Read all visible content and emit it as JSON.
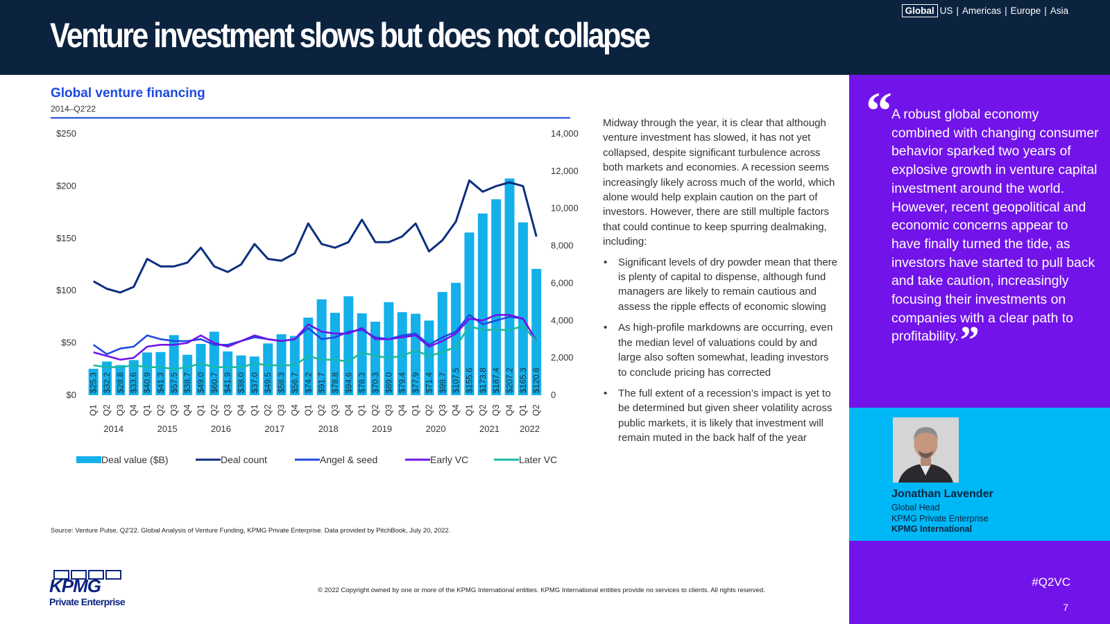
{
  "header": {
    "title": "Venture investment slows but does not collapse",
    "regions": [
      "Global",
      "US",
      "Americas",
      "Europe",
      "Asia"
    ]
  },
  "chart_title": "Global venture financing",
  "chart_subtitle": "2014–Q2'22",
  "body": {
    "intro": "Midway through the year, it is clear that although venture investment has slowed, it has not yet collapsed, despite significant turbulence across both markets and economies. A recession seems increasingly likely across much of the world, which alone would help explain caution on the part of investors. However, there are still multiple factors that could continue to keep spurring dealmaking, including:",
    "bullets": [
      "Significant levels of dry powder mean that there is plenty of capital to dispense, although fund managers are likely to remain cautious and assess the ripple effects of economic slowing",
      "As high-profile markdowns are occurring, even the median level of valuations could by and large also soften somewhat, leading investors to conclude pricing has corrected",
      "The full extent of a recession’s impact is yet to be determined but given sheer volatility across public markets, it is likely that investment will remain muted in the back half of the year"
    ]
  },
  "source": "Source: Venture Pulse, Q2'22. Global Analysis of Venture Funding, KPMG Private Enterprise. Data provided by PitchBook, July 20, 2022.",
  "copyright": "© 2022 Copyright owned by one or more of the KPMG International entities. KPMG International entities provide no services to clients. All rights reserved.",
  "logo": {
    "word": "KPMG",
    "sub": "Private Enterprise"
  },
  "quote": "A robust global economy combined with changing consumer behavior sparked two years of explosive growth in venture capital investment around the world. However, recent geopolitical and economic concerns appear to have finally turned the tide, as investors have started to pull back and take caution, increasingly focusing their investments on companies with a clear path to profitability.",
  "person": {
    "name": "Jonathan Lavender",
    "role1": "Global Head",
    "role2": "KPMG Private Enterprise",
    "org": "KPMG International"
  },
  "hashtag": "#Q2VC",
  "page_number": "7",
  "colors": {
    "navy": "#0c233f",
    "purple": "#7213ea",
    "cyan": "#00b8f5",
    "bar": "#14b0ea",
    "deal_count": "#0c2e7e",
    "angel_seed": "#1e49e2",
    "early_vc": "#7213ea",
    "later_vc": "#1ab8a6"
  },
  "chart_data": {
    "type": "bar",
    "categories": [
      "Q1",
      "Q2",
      "Q3",
      "Q4",
      "Q1",
      "Q2",
      "Q3",
      "Q4",
      "Q1",
      "Q2",
      "Q3",
      "Q4",
      "Q1",
      "Q2",
      "Q3",
      "Q4",
      "Q1",
      "Q2",
      "Q3",
      "Q4",
      "Q1",
      "Q2",
      "Q3",
      "Q4",
      "Q1",
      "Q2",
      "Q3",
      "Q4",
      "Q1",
      "Q2",
      "Q3",
      "Q4",
      "Q1",
      "Q2"
    ],
    "years": [
      "2014",
      "2015",
      "2016",
      "2017",
      "2018",
      "2019",
      "2020",
      "2021",
      "2022"
    ],
    "bar_labels": [
      "$25.3",
      "$32.2",
      "$28.8",
      "$33.6",
      "$40.9",
      "$41.3",
      "$57.5",
      "$38.7",
      "$49.0",
      "$60.7",
      "$41.9",
      "$38.0",
      "$37.0",
      "$49.5",
      "$58.3",
      "$56.7",
      "$74.2",
      "$91.7",
      "$78.8",
      "$94.6",
      "$78.3",
      "$70.3",
      "$89.0",
      "$79.4",
      "$77.9",
      "$71.4",
      "$98.7",
      "$107.5",
      "$155.6",
      "$173.8",
      "$187.4",
      "$207.2",
      "$165.3",
      "$120.8"
    ],
    "series": [
      {
        "name": "Deal value ($B)",
        "type": "bar",
        "axis": "left",
        "values": [
          25.3,
          32.2,
          28.8,
          33.6,
          40.9,
          41.3,
          57.5,
          38.7,
          49.0,
          60.7,
          41.9,
          38.0,
          37.0,
          49.5,
          58.3,
          56.7,
          74.2,
          91.7,
          78.8,
          94.6,
          78.3,
          70.3,
          89.0,
          79.4,
          77.9,
          71.4,
          98.7,
          107.5,
          155.6,
          173.8,
          187.4,
          207.2,
          165.3,
          120.8
        ]
      },
      {
        "name": "Deal count",
        "type": "line",
        "axis": "right",
        "values": [
          6100,
          5700,
          5500,
          5800,
          7300,
          6900,
          6900,
          7100,
          7900,
          6900,
          6600,
          7000,
          8100,
          7300,
          7200,
          7600,
          9200,
          8100,
          7900,
          8200,
          9400,
          8200,
          8200,
          8500,
          9200,
          7700,
          8300,
          9300,
          11500,
          10900,
          11200,
          11400,
          11200,
          8500
        ]
      },
      {
        "name": "Angel & seed",
        "type": "line",
        "axis": "right",
        "values": [
          2700,
          2200,
          2500,
          2600,
          3200,
          3000,
          2900,
          2900,
          3000,
          2700,
          2700,
          2900,
          3100,
          3000,
          2900,
          3000,
          3600,
          3000,
          3100,
          3400,
          3500,
          3100,
          3000,
          3200,
          3300,
          2700,
          3100,
          3400,
          4300,
          3800,
          4000,
          4200,
          4100,
          2900
        ]
      },
      {
        "name": "Early VC",
        "type": "line",
        "axis": "right",
        "values": [
          2300,
          2100,
          1900,
          2000,
          2600,
          2700,
          2700,
          2800,
          3200,
          2800,
          2600,
          2900,
          3200,
          3000,
          2900,
          3000,
          3800,
          3400,
          3300,
          3300,
          3600,
          3000,
          3000,
          3100,
          3200,
          2600,
          2900,
          3300,
          4100,
          4000,
          4300,
          4300,
          4100,
          2900
        ]
      },
      {
        "name": "Later VC",
        "type": "line",
        "axis": "right",
        "values": [
          1600,
          1500,
          1500,
          1600,
          1500,
          1500,
          1400,
          1500,
          1700,
          1500,
          1500,
          1500,
          1700,
          1600,
          1600,
          1600,
          2100,
          1900,
          1900,
          1800,
          2300,
          2100,
          2000,
          2100,
          2400,
          2100,
          2300,
          2600,
          3700,
          3500,
          3500,
          3500,
          3700,
          2900
        ]
      }
    ],
    "left_axis": {
      "ticks": [
        "$0",
        "$50",
        "$100",
        "$150",
        "$200",
        "$250"
      ],
      "ylim": [
        0,
        250
      ]
    },
    "right_axis": {
      "ticks": [
        "0",
        "2,000",
        "4,000",
        "6,000",
        "8,000",
        "10,000",
        "12,000",
        "14,000"
      ],
      "ylim": [
        0,
        14000
      ]
    },
    "grid": false,
    "legend_position": "bottom"
  }
}
